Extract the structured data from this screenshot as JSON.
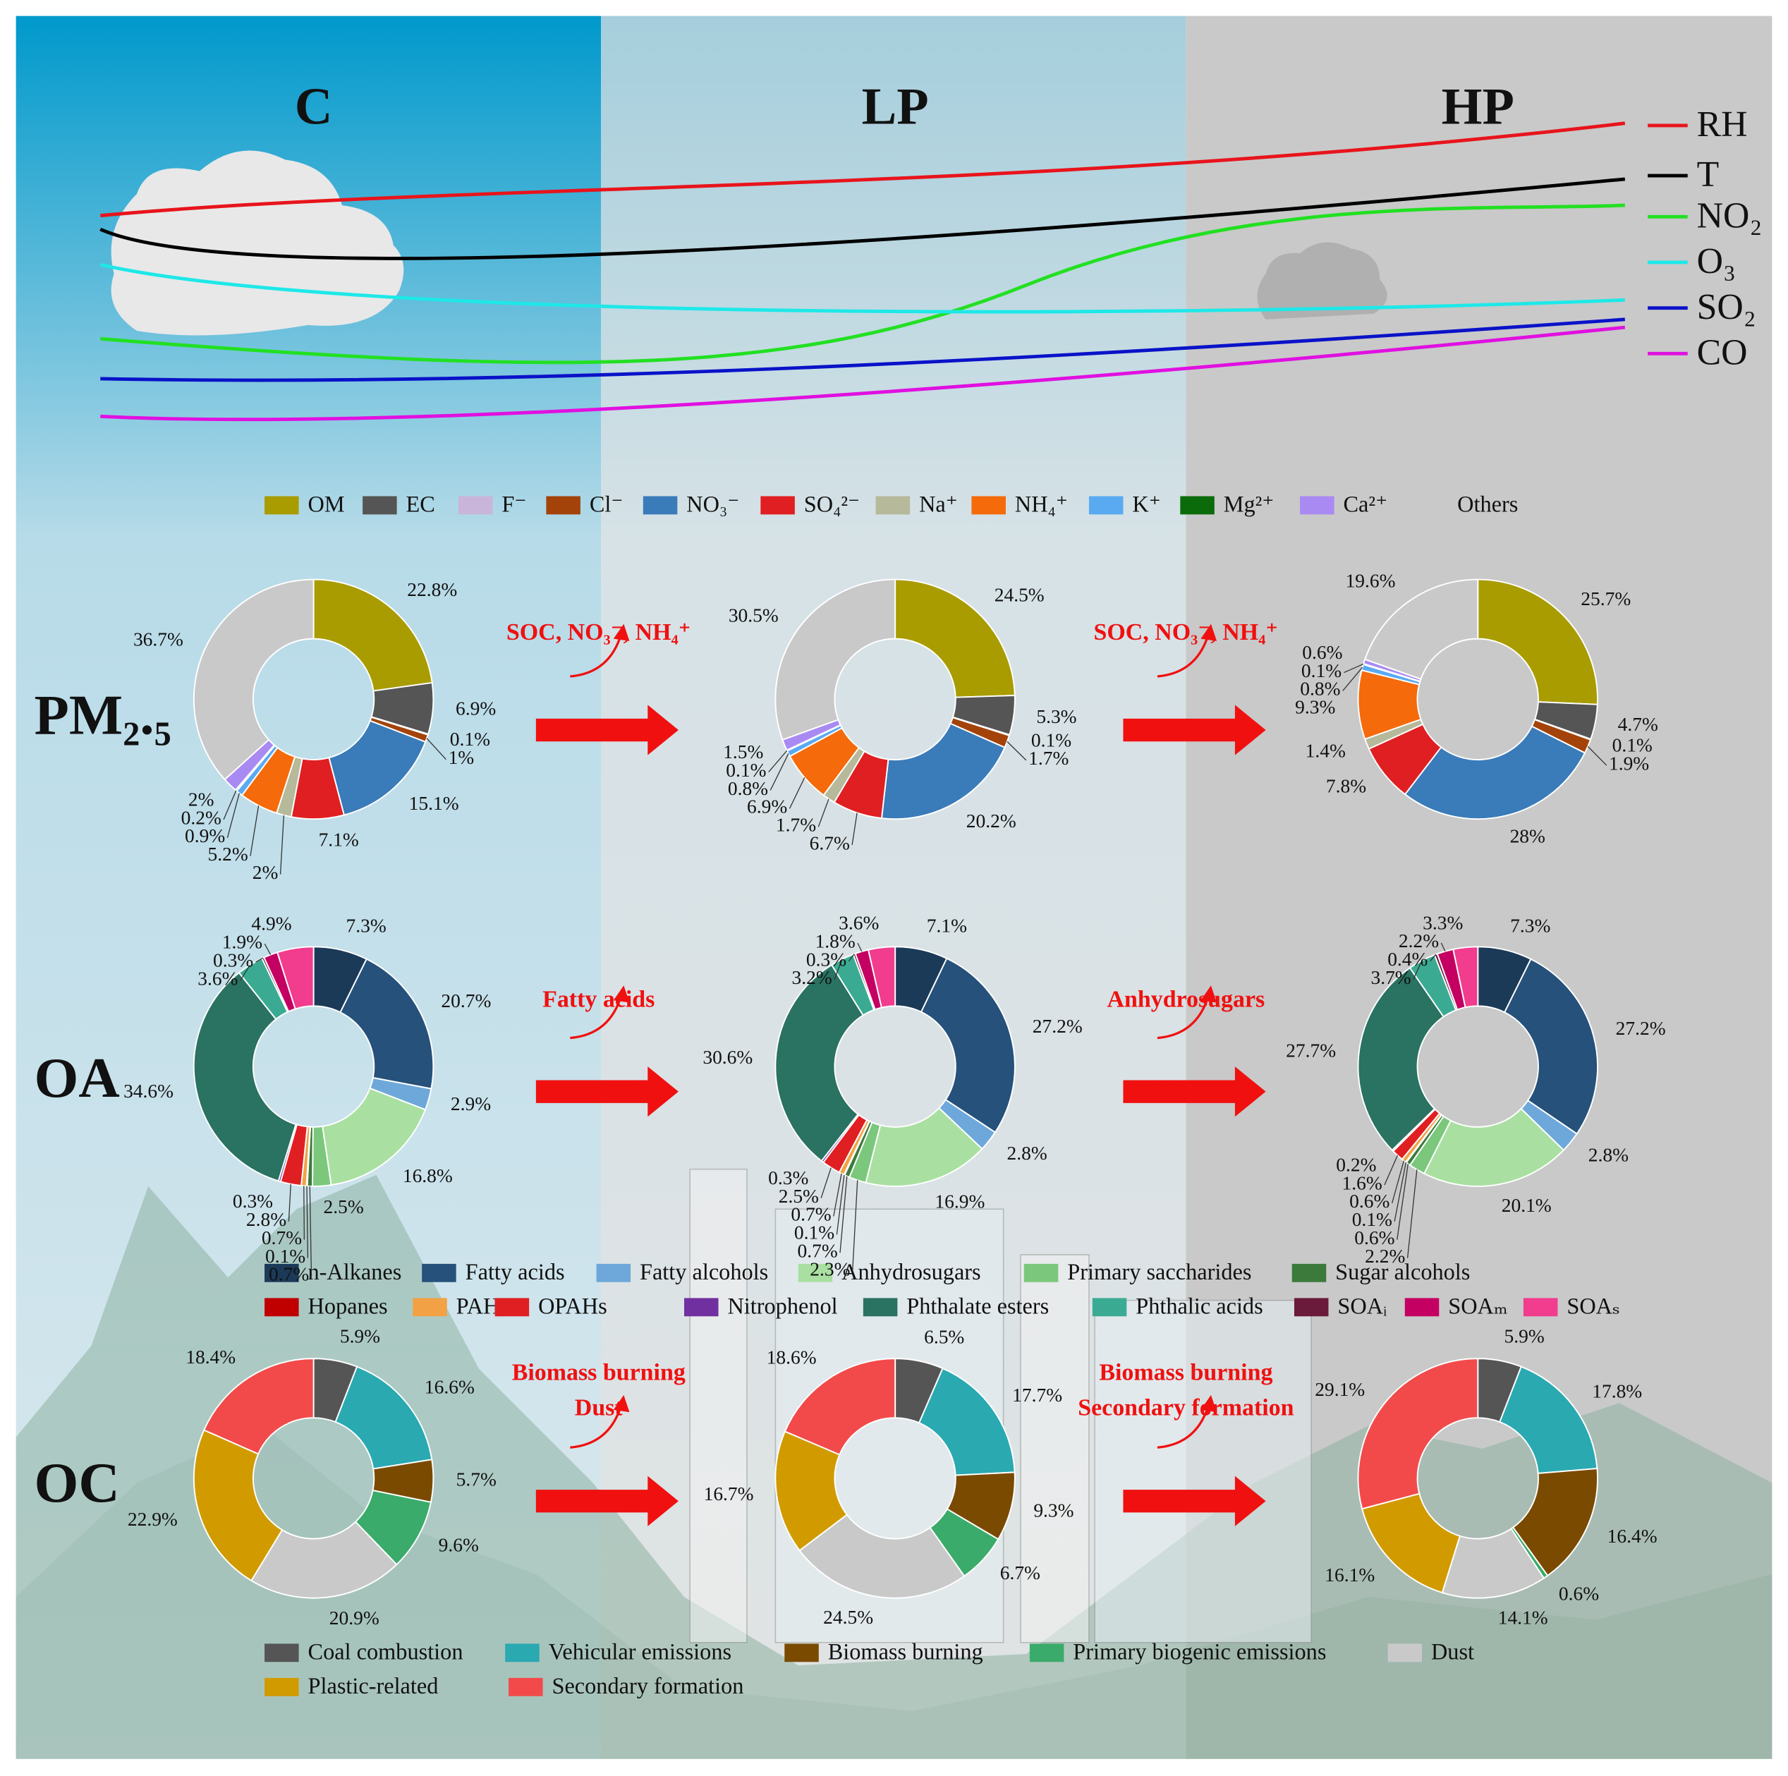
{
  "periods": [
    "C",
    "LP",
    "HP"
  ],
  "meteorology": [
    {
      "name": "RH",
      "color": "#e8141c"
    },
    {
      "name": "T",
      "color": "#000000"
    },
    {
      "name": "NO₂",
      "color": "#22e022"
    },
    {
      "name": "O₃",
      "color": "#1ee8e8"
    },
    {
      "name": "SO₂",
      "color": "#0a12c8"
    },
    {
      "name": "CO",
      "color": "#e010e0"
    }
  ],
  "chart_data": [
    {
      "type": "donut",
      "row_label": "PM₂.₅",
      "categories": [
        "OM",
        "EC",
        "F⁻",
        "Cl⁻",
        "NO₃⁻",
        "SO₄²⁻",
        "Na⁺",
        "NH₄⁺",
        "K⁺",
        "Mg²⁺",
        "Ca²⁺",
        "Others"
      ],
      "colors": [
        "#a89c00",
        "#555555",
        "#c9b5d9",
        "#a3430a",
        "#3a7bb9",
        "#e01f22",
        "#b6b99a",
        "#f56a0a",
        "#5aaaf2",
        "#0b6b0b",
        "#a98af2",
        "#c9c9c9"
      ],
      "series": [
        {
          "values": [
            22.8,
            6.9,
            0.1,
            1,
            15.1,
            7.1,
            2,
            5.2,
            0.9,
            0.2,
            2,
            36.7
          ],
          "value_labels": [
            "22.8%",
            "6.9%",
            "0.1%",
            "1%",
            "15.1%",
            "7.1%",
            "2%",
            "5.2%",
            "0.9%",
            "0.2%",
            "2%",
            "36.7%"
          ]
        },
        {
          "values": [
            24.5,
            5.3,
            0.1,
            1.7,
            20.2,
            6.7,
            1.7,
            6.9,
            0.8,
            0.1,
            1.5,
            30.5
          ],
          "value_labels": [
            "24.5%",
            "5.3%",
            "0.1%",
            "1.7%",
            "20.2%",
            "6.7%",
            "1.7%",
            "6.9%",
            "0.8%",
            "0.1%",
            "1.5%",
            "30.5%"
          ]
        },
        {
          "values": [
            25.7,
            4.7,
            0.1,
            1.9,
            28,
            7.8,
            1.4,
            9.3,
            0.8,
            0.1,
            0.6,
            19.6
          ],
          "value_labels": [
            "25.7%",
            "4.7%",
            "0.1%",
            "1.9%",
            "28%",
            "7.8%",
            "1.4%",
            "9.3%",
            "0.8%",
            "0.1%",
            "0.6%",
            "19.6%"
          ]
        }
      ],
      "transitions": [
        [
          "SOC, NO₃⁻, NH₄⁺"
        ],
        [
          "SOC, NO₃⁻, NH₄⁺"
        ]
      ]
    },
    {
      "type": "donut",
      "row_label": "OA",
      "categories": [
        "n-Alkanes",
        "Fatty acids",
        "Fatty alcohols",
        "Anhydrosugars",
        "Primary saccharides",
        "Sugar alcohols",
        "Hopanes",
        "PAHs",
        "OPAHs",
        "Nitrophenol",
        "Phthalate esters",
        "Phthalic acids",
        "SOAᵢ",
        "SOAₘ",
        "SOAₛ"
      ],
      "colors": [
        "#1b3a58",
        "#25517b",
        "#6ea8da",
        "#a9e0a1",
        "#7bc77b",
        "#3b7a3b",
        "#c00000",
        "#f2a244",
        "#e01f22",
        "#7030a0",
        "#2a7262",
        "#3aab92",
        "#6a1a3a",
        "#c40062",
        "#f23c8e"
      ],
      "series": [
        {
          "values": [
            7.3,
            20.7,
            2.9,
            16.8,
            2.5,
            0.7,
            0.1,
            0.7,
            2.8,
            0.3,
            34.6,
            3.6,
            0.3,
            1.9,
            4.9
          ],
          "value_labels": [
            "7.3%",
            "20.7%",
            "2.9%",
            "16.8%",
            "2.5%",
            "0.7%",
            "0.1%",
            "0.7%",
            "2.8%",
            "0.3%",
            "34.6%",
            "3.6%",
            "0.3%",
            "1.9%",
            "4.9%"
          ]
        },
        {
          "values": [
            7.1,
            27.2,
            2.8,
            16.9,
            2.3,
            0.7,
            0.1,
            0.7,
            2.5,
            0.3,
            30.6,
            3.2,
            0.3,
            1.8,
            3.6
          ],
          "value_labels": [
            "7.1%",
            "27.2%",
            "2.8%",
            "16.9%",
            "2.3%",
            "0.7%",
            "0.1%",
            "0.7%",
            "2.5%",
            "0.3%",
            "30.6%",
            "3.2%",
            "0.3%",
            "1.8%",
            "3.6%"
          ]
        },
        {
          "values": [
            7.3,
            27.2,
            2.8,
            20.1,
            2.2,
            0.6,
            0.1,
            0.6,
            1.6,
            0.2,
            27.7,
            3.7,
            0.4,
            2.2,
            3.3
          ],
          "value_labels": [
            "7.3%",
            "27.2%",
            "2.8%",
            "20.1%",
            "2.2%",
            "0.6%",
            "0.1%",
            "0.6%",
            "1.6%",
            "0.2%",
            "27.7%",
            "3.7%",
            "0.4%",
            "2.2%",
            "3.3%"
          ]
        }
      ],
      "transitions": [
        [
          "Fatty acids"
        ],
        [
          "Anhydrosugars"
        ]
      ]
    },
    {
      "type": "donut",
      "row_label": "OC",
      "categories": [
        "Coal combustion",
        "Vehicular emissions",
        "Biomass burning",
        "Primary biogenic emissions",
        "Dust",
        "Plastic-related",
        "Secondary formation"
      ],
      "colors": [
        "#555555",
        "#2aa9b1",
        "#7a4a00",
        "#3aab6a",
        "#c9c9c9",
        "#d19b00",
        "#f24a4a"
      ],
      "series": [
        {
          "values": [
            5.9,
            16.6,
            5.7,
            9.6,
            20.9,
            22.9,
            18.4
          ],
          "value_labels": [
            "5.9%",
            "16.6%",
            "5.7%",
            "9.6%",
            "20.9%",
            "22.9%",
            "18.4%"
          ]
        },
        {
          "values": [
            6.5,
            17.7,
            9.3,
            6.7,
            24.5,
            16.7,
            18.6
          ],
          "value_labels": [
            "6.5%",
            "17.7%",
            "9.3%",
            "6.7%",
            "24.5%",
            "16.7%",
            "18.6%"
          ]
        },
        {
          "values": [
            5.9,
            17.8,
            16.4,
            0.6,
            14.1,
            16.1,
            29.1
          ],
          "value_labels": [
            "5.9%",
            "17.8%",
            "16.4%",
            "0.6%",
            "14.1%",
            "16.1%",
            "29.1%"
          ]
        }
      ],
      "transitions": [
        [
          "Biomass burning",
          "Dust"
        ],
        [
          "Biomass burning",
          "Secondary formation"
        ]
      ]
    }
  ]
}
